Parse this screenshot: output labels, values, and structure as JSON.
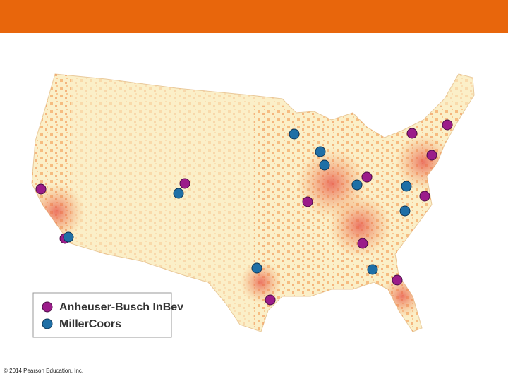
{
  "legend": {
    "items": [
      {
        "label": "Anheuser-Busch InBev"
      },
      {
        "label": "MillerCoors"
      }
    ]
  },
  "footer": {
    "copyright": "© 2014 Pearson Education, Inc."
  }
}
